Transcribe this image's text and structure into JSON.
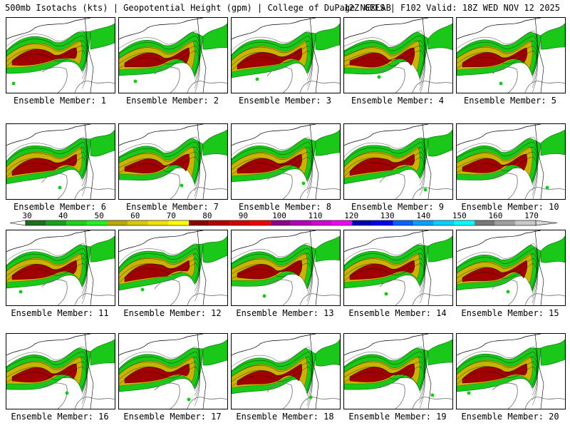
{
  "header": {
    "left": "500mb Isotachs (kts) | Geopotential Height (gpm) | College of DuPage NEXLAB",
    "right": "12Z GEFS | F102 Valid: 18Z WED NOV 12 2025"
  },
  "panels": [
    {
      "label": "Ensemble Member: 1"
    },
    {
      "label": "Ensemble Member: 2"
    },
    {
      "label": "Ensemble Member: 3"
    },
    {
      "label": "Ensemble Member: 4"
    },
    {
      "label": "Ensemble Member: 5"
    },
    {
      "label": "Ensemble Member: 6"
    },
    {
      "label": "Ensemble Member: 7"
    },
    {
      "label": "Ensemble Member: 8"
    },
    {
      "label": "Ensemble Member: 9"
    },
    {
      "label": "Ensemble Member: 10"
    },
    {
      "label": "Ensemble Member: 11"
    },
    {
      "label": "Ensemble Member: 12"
    },
    {
      "label": "Ensemble Member: 13"
    },
    {
      "label": "Ensemble Member: 14"
    },
    {
      "label": "Ensemble Member: 15"
    },
    {
      "label": "Ensemble Member: 16"
    },
    {
      "label": "Ensemble Member: 17"
    },
    {
      "label": "Ensemble Member: 18"
    },
    {
      "label": "Ensemble Member: 19"
    },
    {
      "label": "Ensemble Member: 20"
    }
  ],
  "colorbar": {
    "unit": "kts",
    "min": 30,
    "max": 170,
    "labels": [
      "30",
      "40",
      "50",
      "60",
      "70",
      "80",
      "90",
      "100",
      "110",
      "120",
      "130",
      "140",
      "150",
      "160",
      "170"
    ],
    "colors": [
      "#1e6e1e",
      "#1aa01a",
      "#19d219",
      "#22f022",
      "#b8a800",
      "#d8c800",
      "#f0e000",
      "#ffff00",
      "#8c0000",
      "#b40000",
      "#d20000",
      "#f00000",
      "#8c008c",
      "#b400b4",
      "#d200d2",
      "#f000f0",
      "#0000b4",
      "#0000f0",
      "#0064ff",
      "#00a0ff",
      "#00d2ff",
      "#00ffff",
      "#787878",
      "#a0a0a0",
      "#c8c8c8"
    ]
  },
  "map_colors": {
    "jet_low": "#19c819",
    "jet_mid": "#c8b400",
    "jet_high": "#a00000",
    "coast": "#7a7a7a",
    "border": "#000000"
  }
}
